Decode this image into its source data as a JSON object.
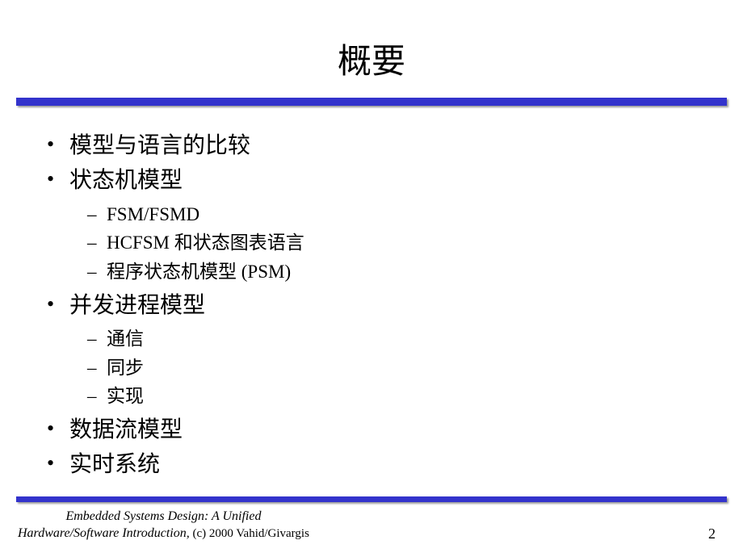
{
  "title": "概要",
  "bullets": {
    "b1": "模型与语言的比较",
    "b2": "状态机模型",
    "b2_sub": {
      "s1": "FSM/FSMD",
      "s2": "HCFSM 和状态图表语言",
      "s3": "程序状态机模型 (PSM)"
    },
    "b3": "并发进程模型",
    "b3_sub": {
      "s1": "通信",
      "s2": "同步",
      "s3": "实现"
    },
    "b4": "数据流模型",
    "b5": "实时系统"
  },
  "footer": {
    "line1": "Embedded Systems Design: A Unified",
    "line2_italic": "Hardware/Software Introduction,",
    "line2_rest": " (c) 2000 Vahid/Givargis",
    "page": "2"
  },
  "colors": {
    "divider": "#3333cc",
    "background": "#ffffff",
    "text": "#000000"
  }
}
